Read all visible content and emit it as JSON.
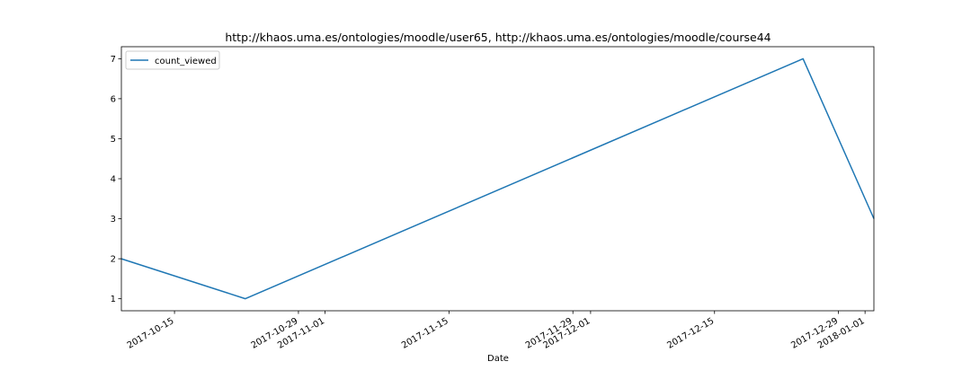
{
  "chart_data": {
    "type": "line",
    "title": "http://khaos.uma.es/ontologies/moodle/user65, http://khaos.uma.es/ontologies/moodle/course44",
    "xlabel": "Date",
    "ylabel": "",
    "x_type": "date",
    "xlim": [
      "2017-10-09",
      "2018-01-02"
    ],
    "ylim": [
      0.7,
      7.3
    ],
    "yticks": [
      1,
      2,
      3,
      4,
      5,
      6,
      7
    ],
    "xticks": [
      {
        "date": "2017-10-15",
        "label": "2017-10-15"
      },
      {
        "date": "2017-10-29",
        "label": "2017-10-29"
      },
      {
        "date": "2017-11-01",
        "label": "2017-11-01"
      },
      {
        "date": "2017-11-15",
        "label": "2017-11-15"
      },
      {
        "date": "2017-11-29",
        "label": "2017-11-29"
      },
      {
        "date": "2017-12-01",
        "label": "2017-12-01"
      },
      {
        "date": "2017-12-15",
        "label": "2017-12-15"
      },
      {
        "date": "2017-12-29",
        "label": "2017-12-29"
      },
      {
        "date": "2018-01-01",
        "label": "2018-01-01"
      }
    ],
    "grid": false,
    "legend": "upper-left",
    "series": [
      {
        "name": "count_viewed",
        "color": "#1f77b4",
        "points": [
          {
            "x": "2017-10-09",
            "y": 2
          },
          {
            "x": "2017-10-23",
            "y": 1
          },
          {
            "x": "2017-12-25",
            "y": 7
          },
          {
            "x": "2018-01-02",
            "y": 3
          }
        ]
      }
    ]
  }
}
